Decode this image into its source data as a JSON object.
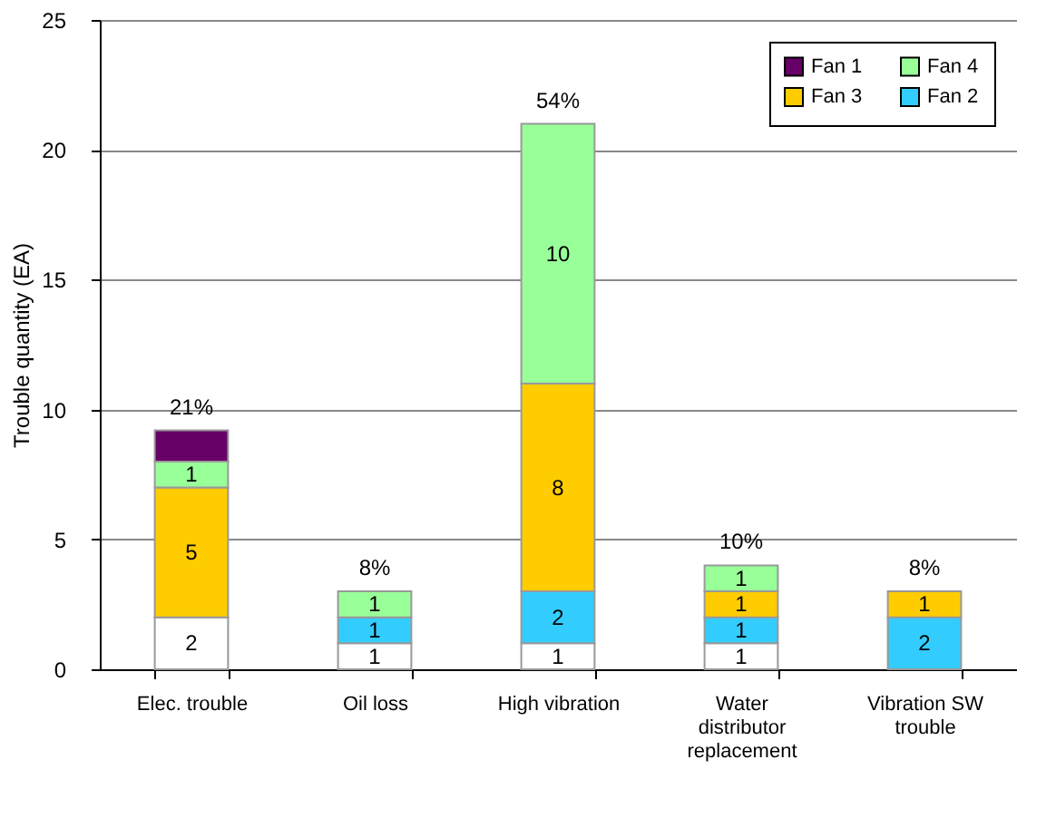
{
  "chart_data": {
    "type": "bar",
    "stacked": true,
    "ylabel": "Trouble quantity (EA)",
    "categories": [
      "Elec. trouble",
      "Oil loss",
      "High vibration",
      "Water distributor replacement",
      "Vibration SW trouble"
    ],
    "series": [
      {
        "color": "#ffffff",
        "values": [
          2,
          1,
          1,
          1,
          null
        ],
        "value_labels": [
          "2",
          "1",
          "1",
          "1",
          null
        ]
      },
      {
        "name": "Fan 2",
        "color": "#33ccff",
        "values": [
          null,
          1,
          2,
          1,
          2
        ],
        "value_labels": [
          null,
          "1",
          "2",
          "1",
          "2"
        ]
      },
      {
        "name": "Fan 3",
        "color": "#ffcc00",
        "values": [
          5,
          null,
          8,
          1,
          1
        ],
        "value_labels": [
          "5",
          null,
          "8",
          "1",
          "1"
        ]
      },
      {
        "name": "Fan 4",
        "color": "#99ff99",
        "values": [
          1,
          1,
          10,
          1,
          null
        ],
        "value_labels": [
          "1",
          "1",
          "10",
          "1",
          null
        ]
      },
      {
        "name": "Fan 1",
        "color": "#660066",
        "values": [
          1.2,
          null,
          null,
          null,
          null
        ],
        "value_labels": [
          null,
          null,
          null,
          null,
          null
        ]
      }
    ],
    "annotations": [
      {
        "text": "21%",
        "x": "Elec. trouble",
        "y": 9.2
      },
      {
        "text": "8%",
        "x": "Oil loss",
        "y": 3
      },
      {
        "text": "54%",
        "x": "High vibration",
        "y": 21
      },
      {
        "text": "10%",
        "x": "Water distributor replacement",
        "y": 4
      },
      {
        "text": "8%",
        "x": "Vibration SW trouble",
        "y": 3
      }
    ],
    "ylim": [
      0,
      25
    ],
    "yticks": [
      0,
      5,
      10,
      15,
      20,
      25
    ],
    "grid": "y",
    "legend": "top right"
  }
}
